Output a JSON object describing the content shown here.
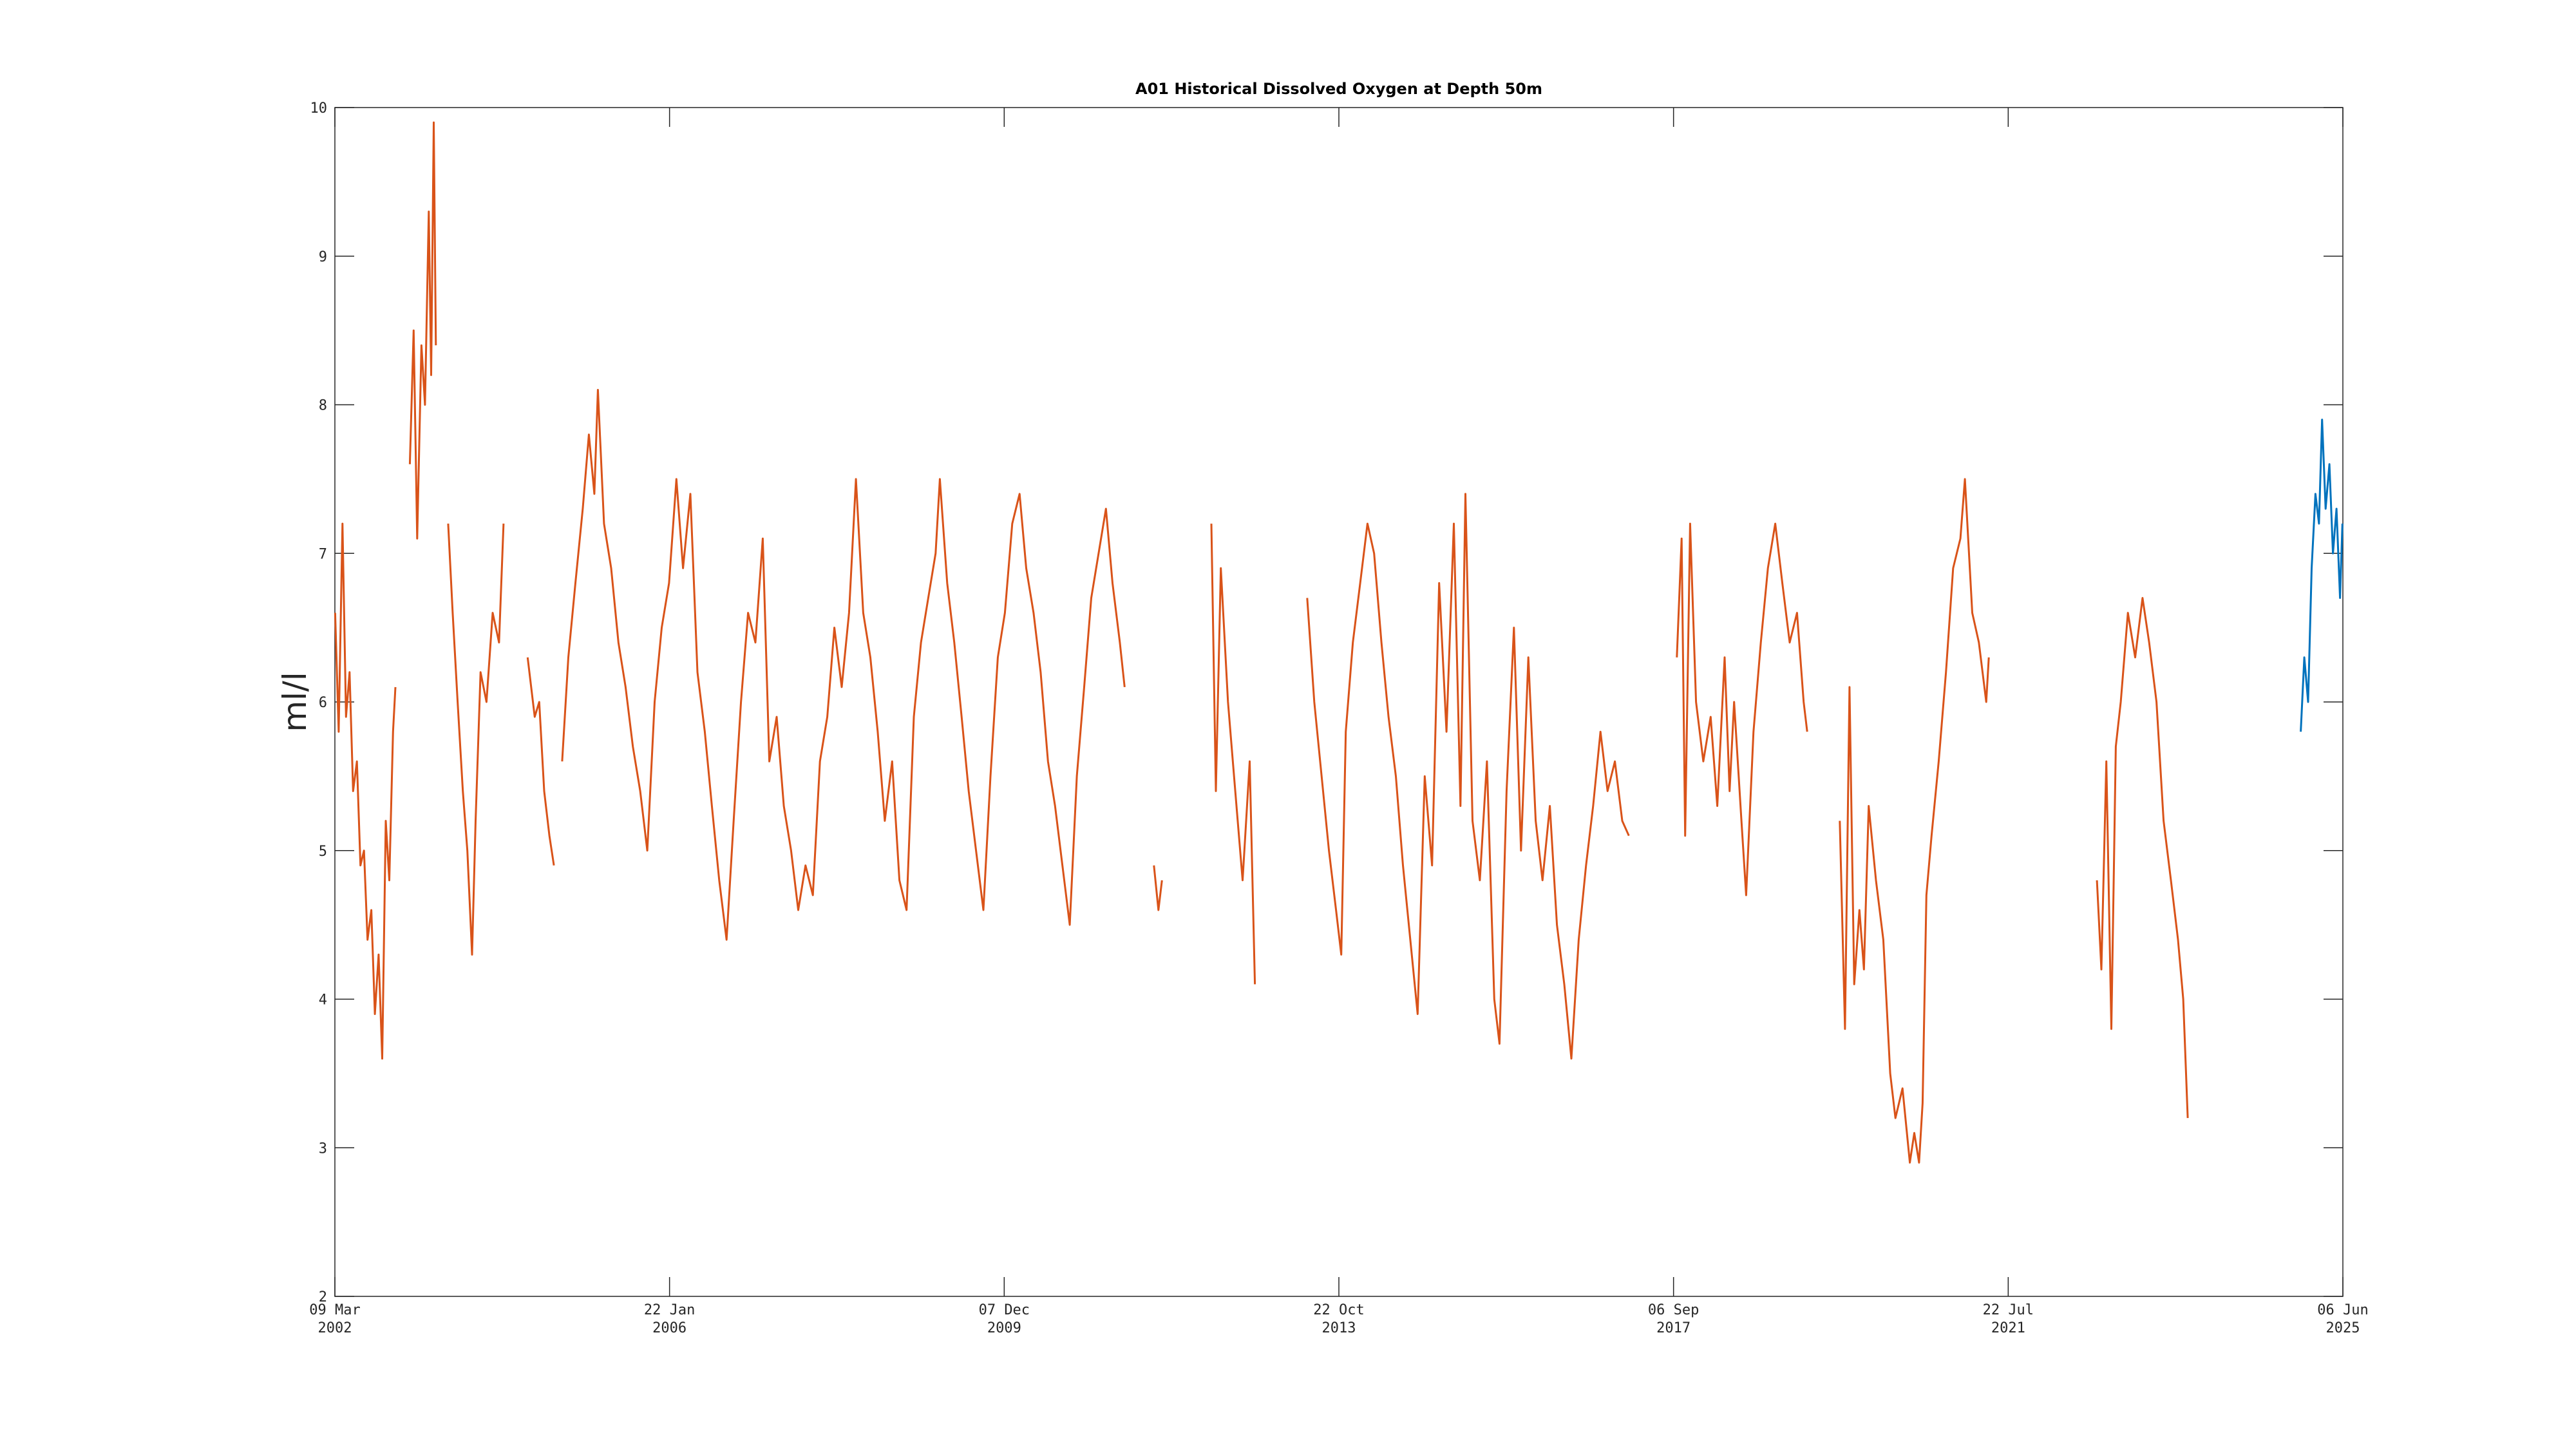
{
  "chart_data": {
    "type": "line",
    "title": "A01 Historical Dissolved Oxygen at Depth 50m",
    "y_label": "ml/l",
    "xlim": [
      "2002-03-09",
      "2025-06-06"
    ],
    "xticks": [
      {
        "value": "2002-03-09",
        "label": "09 Mar 2002"
      },
      {
        "value": "2006-01-22",
        "label": "22 Jan 2006"
      },
      {
        "value": "2009-12-07",
        "label": "07 Dec 2009"
      },
      {
        "value": "2013-10-22",
        "label": "22 Oct 2013"
      },
      {
        "value": "2017-09-06",
        "label": "06 Sep 2017"
      },
      {
        "value": "2021-07-22",
        "label": "22 Jul 2021"
      },
      {
        "value": "2025-06-06",
        "label": "06 Jun 2025"
      }
    ],
    "ylim": [
      2,
      10
    ],
    "yticks": [
      2,
      3,
      4,
      5,
      6,
      7,
      8,
      9,
      10
    ],
    "grid": false,
    "series": [
      {
        "color": "#d95319",
        "x": [
          "2002-03-10",
          "2002-03-25",
          "2002-04-10",
          "2002-04-25",
          "2002-05-10",
          "2002-05-25",
          "2002-06-10",
          "2002-06-25",
          "2002-07-10",
          "2002-07-25",
          "2002-08-10",
          "2002-08-25",
          "2002-09-10",
          "2002-09-25",
          "2002-10-10",
          "2002-10-25",
          "2002-11-10",
          "2002-11-20",
          "2002-12-20",
          "2003-01-20",
          "2003-02-05",
          "2003-02-20",
          "2003-03-10",
          "2003-03-25",
          "2003-04-10",
          "2003-04-20",
          "2003-05-01",
          "2003-05-10",
          "2003-06-01",
          "2003-07-01",
          "2003-07-20",
          "2003-08-10",
          "2003-09-01",
          "2003-09-20",
          "2003-10-10",
          "2003-10-25",
          "2003-11-15",
          "2003-12-10",
          "2004-01-05",
          "2004-02-01",
          "2004-02-20",
          "2004-04-01",
          "2004-06-01",
          "2004-07-01",
          "2004-07-20",
          "2004-08-10",
          "2004-09-01",
          "2004-09-20",
          "2004-10-10",
          "2004-10-25",
          "2004-11-20",
          "2004-12-20",
          "2005-01-20",
          "2005-02-15",
          "2005-03-10",
          "2005-03-25",
          "2005-04-20",
          "2005-05-20",
          "2005-06-20",
          "2005-07-20",
          "2005-08-20",
          "2005-09-20",
          "2005-10-20",
          "2005-11-20",
          "2005-12-20",
          "2006-01-20",
          "2006-02-20",
          "2006-03-20",
          "2006-04-20",
          "2006-05-20",
          "2006-06-20",
          "2006-07-20",
          "2006-08-20",
          "2006-09-20",
          "2006-10-20",
          "2006-11-20",
          "2006-12-20",
          "2007-01-20",
          "2007-02-20",
          "2007-03-20",
          "2007-04-20",
          "2007-05-20",
          "2007-06-20",
          "2007-07-20",
          "2007-08-20",
          "2007-09-20",
          "2007-10-20",
          "2007-11-20",
          "2007-12-20",
          "2008-01-20",
          "2008-02-20",
          "2008-03-20",
          "2008-04-20",
          "2008-05-20",
          "2008-06-20",
          "2008-07-20",
          "2008-08-20",
          "2008-09-20",
          "2008-10-20",
          "2008-11-20",
          "2008-12-20",
          "2009-01-20",
          "2009-02-20",
          "2009-03-10",
          "2009-04-10",
          "2009-05-10",
          "2009-06-10",
          "2009-07-10",
          "2009-08-10",
          "2009-09-10",
          "2009-10-10",
          "2009-11-10",
          "2009-12-10",
          "2010-01-10",
          "2010-02-10",
          "2010-03-10",
          "2010-04-10",
          "2010-05-10",
          "2010-06-10",
          "2010-07-10",
          "2010-08-10",
          "2010-09-10",
          "2010-10-10",
          "2010-11-10",
          "2010-12-10",
          "2011-01-10",
          "2011-02-10",
          "2011-03-10",
          "2011-04-10",
          "2011-04-30",
          "2011-06-01",
          "2011-09-01",
          "2011-09-20",
          "2011-10-05",
          "2011-12-01",
          "2012-05-01",
          "2012-05-20",
          "2012-06-10",
          "2012-07-10",
          "2012-08-10",
          "2012-09-10",
          "2012-10-10",
          "2012-11-01",
          "2013-01-01",
          "2013-06-10",
          "2013-07-10",
          "2013-08-10",
          "2013-09-10",
          "2013-10-10",
          "2013-11-01",
          "2013-11-20",
          "2013-12-20",
          "2014-01-20",
          "2014-02-20",
          "2014-03-20",
          "2014-04-20",
          "2014-05-20",
          "2014-06-20",
          "2014-07-20",
          "2014-08-20",
          "2014-09-20",
          "2014-10-20",
          "2014-11-20",
          "2014-12-20",
          "2015-01-20",
          "2015-02-20",
          "2015-03-20",
          "2015-04-10",
          "2015-05-10",
          "2015-06-10",
          "2015-07-10",
          "2015-08-10",
          "2015-09-01",
          "2015-10-01",
          "2015-11-01",
          "2015-12-01",
          "2016-01-01",
          "2016-02-01",
          "2016-03-01",
          "2016-04-01",
          "2016-05-01",
          "2016-06-01",
          "2016-07-01",
          "2016-08-01",
          "2016-09-01",
          "2016-10-01",
          "2016-11-01",
          "2016-12-01",
          "2017-01-01",
          "2017-02-01",
          "2017-03-01",
          "2017-06-01",
          "2017-09-20",
          "2017-10-10",
          "2017-10-25",
          "2017-11-15",
          "2017-12-10",
          "2018-01-10",
          "2018-02-10",
          "2018-03-10",
          "2018-04-10",
          "2018-05-01",
          "2018-05-20",
          "2018-06-20",
          "2018-07-10",
          "2018-08-10",
          "2018-09-10",
          "2018-10-10",
          "2018-11-10",
          "2018-12-10",
          "2019-01-10",
          "2019-02-10",
          "2019-03-10",
          "2019-03-25",
          "2019-06-01",
          "2019-08-10",
          "2019-09-01",
          "2019-09-20",
          "2019-10-10",
          "2019-11-01",
          "2019-11-20",
          "2019-12-10",
          "2020-01-10",
          "2020-02-10",
          "2020-03-10",
          "2020-04-01",
          "2020-05-01",
          "2020-06-01",
          "2020-06-20",
          "2020-07-10",
          "2020-07-25",
          "2020-08-10",
          "2020-09-01",
          "2020-10-01",
          "2020-11-01",
          "2020-12-01",
          "2021-01-01",
          "2021-01-20",
          "2021-02-20",
          "2021-03-20",
          "2021-04-20",
          "2021-05-01",
          "2021-10-01",
          "2022-08-01",
          "2022-08-20",
          "2022-09-10",
          "2022-10-01",
          "2022-10-20",
          "2022-11-10",
          "2022-12-10",
          "2023-01-10",
          "2023-02-10",
          "2023-03-10",
          "2023-04-10",
          "2023-05-10",
          "2023-06-10",
          "2023-07-10",
          "2023-08-01",
          "2023-08-20"
        ],
        "values": [
          6.6,
          5.8,
          7.2,
          5.9,
          6.2,
          5.4,
          5.6,
          4.9,
          5.0,
          4.4,
          4.6,
          3.9,
          4.3,
          3.6,
          5.2,
          4.8,
          5.8,
          6.1,
          null,
          7.6,
          8.5,
          7.1,
          8.4,
          8.0,
          9.3,
          8.2,
          9.9,
          8.4,
          null,
          7.2,
          6.6,
          6.0,
          5.4,
          5.0,
          4.3,
          5.2,
          6.2,
          6.0,
          6.6,
          6.4,
          7.2,
          null,
          6.3,
          5.9,
          6.0,
          5.4,
          5.1,
          4.9,
          null,
          5.6,
          6.3,
          6.8,
          7.3,
          7.8,
          7.4,
          8.1,
          7.2,
          6.9,
          6.4,
          6.1,
          5.7,
          5.4,
          5.0,
          6.0,
          6.5,
          6.8,
          7.5,
          6.9,
          7.4,
          6.2,
          5.8,
          5.3,
          4.8,
          4.4,
          5.2,
          6.0,
          6.6,
          6.4,
          7.1,
          5.6,
          5.9,
          5.3,
          5.0,
          4.6,
          4.9,
          4.7,
          5.6,
          5.9,
          6.5,
          6.1,
          6.6,
          7.5,
          6.6,
          6.3,
          5.8,
          5.2,
          5.6,
          4.8,
          4.6,
          5.9,
          6.4,
          6.7,
          7.0,
          7.5,
          6.8,
          6.4,
          5.9,
          5.4,
          5.0,
          4.6,
          5.5,
          6.3,
          6.6,
          7.2,
          7.4,
          6.9,
          6.6,
          6.2,
          5.6,
          5.3,
          4.9,
          4.5,
          5.5,
          6.1,
          6.7,
          7.0,
          7.3,
          6.8,
          6.4,
          6.1,
          null,
          4.9,
          4.6,
          4.8,
          null,
          7.2,
          5.4,
          6.9,
          6.0,
          5.4,
          4.8,
          5.6,
          4.1,
          null,
          6.7,
          6.0,
          5.5,
          5.0,
          4.6,
          4.3,
          5.8,
          6.4,
          6.8,
          7.2,
          7.0,
          6.4,
          5.9,
          5.5,
          4.9,
          4.4,
          3.9,
          5.5,
          4.9,
          6.8,
          5.8,
          7.2,
          5.3,
          7.4,
          5.2,
          4.8,
          5.6,
          4.0,
          3.7,
          5.4,
          6.5,
          5.0,
          6.3,
          5.2,
          4.8,
          5.3,
          4.5,
          4.1,
          3.6,
          4.4,
          4.9,
          5.3,
          5.8,
          5.4,
          5.6,
          5.2,
          5.1,
          null,
          6.3,
          7.1,
          5.1,
          7.2,
          6.0,
          5.6,
          5.9,
          5.3,
          6.3,
          5.4,
          6.0,
          5.2,
          4.7,
          5.8,
          6.4,
          6.9,
          7.2,
          6.8,
          6.4,
          6.6,
          6.0,
          5.8,
          null,
          5.2,
          3.8,
          6.1,
          4.1,
          4.6,
          4.2,
          5.3,
          4.8,
          4.4,
          3.5,
          3.2,
          3.4,
          2.9,
          3.1,
          2.9,
          3.3,
          4.7,
          5.1,
          5.6,
          6.2,
          6.9,
          7.1,
          7.5,
          6.6,
          6.4,
          6.0,
          6.3,
          null,
          4.8,
          4.2,
          5.6,
          3.8,
          5.7,
          6.0,
          6.6,
          6.3,
          6.7,
          6.4,
          6.0,
          5.2,
          4.8,
          4.4,
          4.0,
          3.2
        ]
      },
      {
        "color": "#0072bd",
        "x": [
          "2024-12-10",
          "2024-12-25",
          "2025-01-10",
          "2025-01-25",
          "2025-02-10",
          "2025-02-25",
          "2025-03-10",
          "2025-03-25",
          "2025-04-10",
          "2025-04-25",
          "2025-05-10",
          "2025-05-25",
          "2025-06-04"
        ],
        "values": [
          5.8,
          6.3,
          6.0,
          6.9,
          7.4,
          7.2,
          7.9,
          7.3,
          7.6,
          7.0,
          7.3,
          6.7,
          7.2
        ]
      }
    ]
  }
}
